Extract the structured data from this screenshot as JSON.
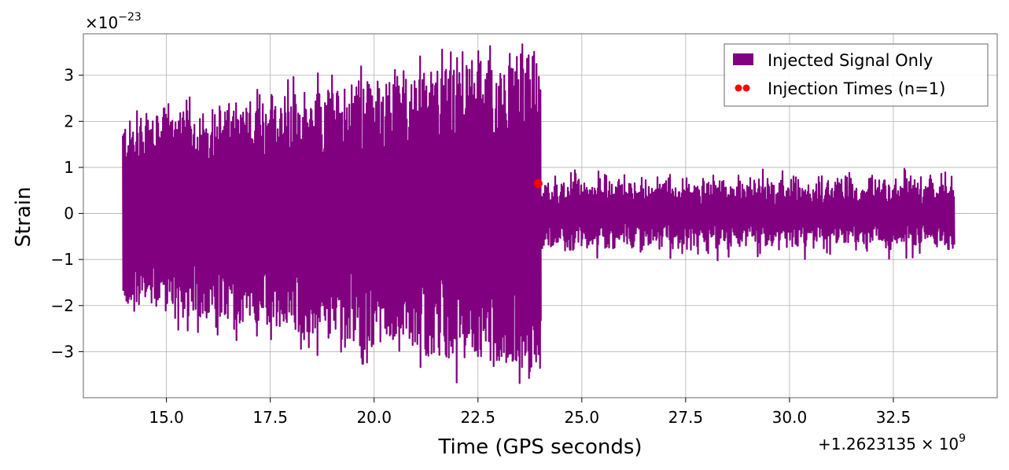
{
  "chart_data": {
    "type": "line",
    "title": "",
    "xlabel": "Time (GPS seconds)",
    "ylabel": "Strain",
    "x_offset_label": "+1.2623135",
    "x_offset_exp": "9",
    "y_scale_prefix": "×10",
    "y_scale_exp": "−23",
    "xlim": [
      13.0,
      35.0
    ],
    "ylim": [
      -4.0,
      3.9
    ],
    "grid": true,
    "legend_position": "top-right",
    "x_ticks": [
      15.0,
      17.5,
      20.0,
      22.5,
      25.0,
      27.5,
      30.0,
      32.5
    ],
    "x_tick_labels": [
      "15.0",
      "17.5",
      "20.0",
      "22.5",
      "25.0",
      "27.5",
      "30.0",
      "32.5"
    ],
    "y_ticks": [
      -3,
      -2,
      -1,
      0,
      1,
      2,
      3
    ],
    "y_tick_labels": [
      "−3",
      "−2",
      "−1",
      "0",
      "1",
      "2",
      "3"
    ],
    "series": [
      {
        "name": "Injected Signal Only",
        "kind": "line",
        "color": "#800080",
        "x_range": [
          13.95,
          33.95
        ],
        "envelope_segments": [
          {
            "x": [
              13.95,
              24.0
            ],
            "peak_start": 2.0,
            "peak_end": 3.5
          },
          {
            "x": [
              24.0,
              33.95
            ],
            "peak_start": 0.9,
            "peak_end": 0.9
          }
        ]
      },
      {
        "name": "Injection Times (n=1)",
        "kind": "scatter",
        "color": "#ff0000",
        "x": [
          23.95
        ],
        "y": [
          0.65
        ]
      }
    ]
  },
  "legend": {
    "items": [
      {
        "label": "Injected Signal Only",
        "color": "#800080",
        "marker": "patch"
      },
      {
        "label": "Injection Times (n=1)",
        "color": "#ff0000",
        "marker": "dots"
      }
    ]
  }
}
